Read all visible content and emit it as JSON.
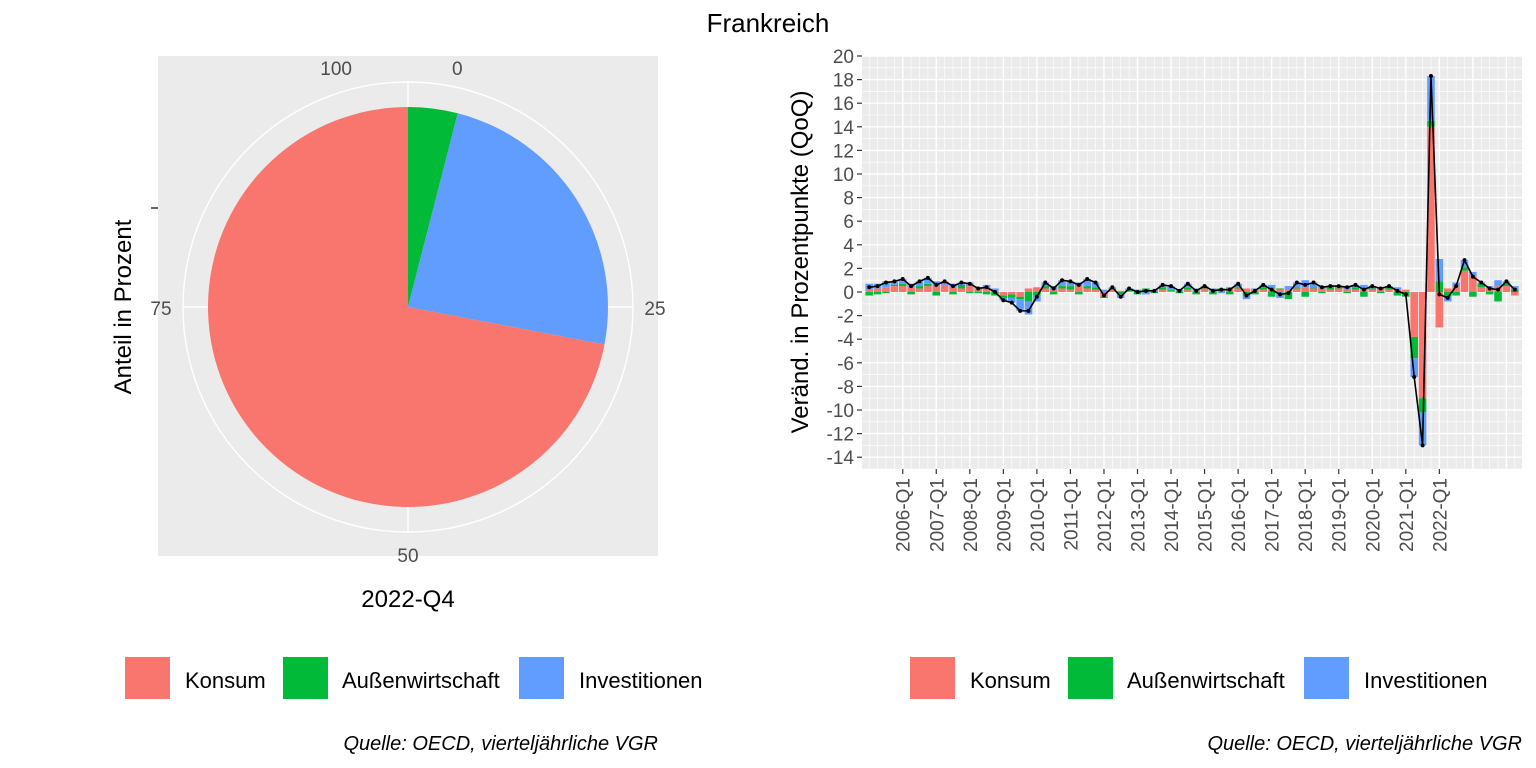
{
  "title": "Frankreich",
  "colors": {
    "Konsum": "#F8766D",
    "Außenwirtschaft": "#00BA38",
    "Investitionen": "#619CFF",
    "panel_bg": "#EBEBEB",
    "grid": "#FFFFFF",
    "line": "#000000",
    "text_dark": "#000000",
    "text_tick": "#4D4D4D"
  },
  "left_panel": {
    "xlabel": "2022-Q4",
    "ylabel": "Anteil in Prozent",
    "source": "Quelle: OECD, vierteljährliche VGR",
    "legend": [
      "Konsum",
      "Außenwirtschaft",
      "Investitionen"
    ]
  },
  "right_panel": {
    "ylabel": "Veränd. in Prozentpunkte (QoQ)",
    "source": "Quelle: OECD, vierteljährliche VGR",
    "legend": [
      "Konsum",
      "Außenwirtschaft",
      "Investitionen"
    ]
  },
  "chart_data": [
    {
      "type": "pie",
      "title": "",
      "xlabel": "2022-Q4",
      "ylabel": "Anteil in Prozent",
      "categories": [
        "Außenwirtschaft",
        "Investitionen",
        "Konsum"
      ],
      "values": [
        4.0,
        24.0,
        72.0
      ],
      "angular_ticks": [
        0,
        25,
        50,
        75,
        100
      ],
      "legend": [
        "Konsum",
        "Außenwirtschaft",
        "Investitionen"
      ],
      "legend_position": "bottom",
      "grid": true
    },
    {
      "type": "bar",
      "stacked": true,
      "title": "",
      "ylabel": "Veränd. in Prozentpunkte (QoQ)",
      "ylim": [
        -15,
        20
      ],
      "yticks": [
        -14,
        -12,
        -10,
        -8,
        -6,
        -4,
        -2,
        0,
        2,
        4,
        6,
        8,
        10,
        12,
        14,
        16,
        18,
        20
      ],
      "x_tick_labels": [
        "2006-Q1",
        "2007-Q1",
        "2008-Q1",
        "2009-Q1",
        "2010-Q1",
        "2011-Q1",
        "2012-Q1",
        "2013-Q1",
        "2014-Q1",
        "2015-Q1",
        "2016-Q1",
        "2017-Q1",
        "2018-Q1",
        "2019-Q1",
        "2020-Q1",
        "2021-Q1",
        "2022-Q1"
      ],
      "start_quarter": "2005-Q1",
      "legend": [
        "Konsum",
        "Außenwirtschaft",
        "Investitionen"
      ],
      "legend_position": "bottom",
      "grid": true,
      "series": [
        {
          "name": "Konsum",
          "values": [
            0.2,
            0.3,
            0.4,
            0.5,
            0.5,
            0.4,
            0.3,
            0.5,
            0.5,
            0.6,
            0.4,
            0.3,
            0.5,
            0.3,
            0.4,
            0.1,
            -0.3,
            -0.2,
            -0.4,
            0.3,
            0.4,
            0.3,
            0.2,
            0.3,
            0.2,
            0.5,
            0.3,
            0.2,
            -0.4,
            0.2,
            0.1,
            0.1,
            0.0,
            0.1,
            0.0,
            0.2,
            0.1,
            0.1,
            0.2,
            0.1,
            0.3,
            0.1,
            0.1,
            0.3,
            0.3,
            0.3,
            0.2,
            0.2,
            0.3,
            0.2,
            0.2,
            0.3,
            0.4,
            0.3,
            0.3,
            0.2,
            0.3,
            0.2,
            0.2,
            0.2,
            0.2,
            0.3,
            0.2,
            0.2,
            0.2,
            -3.8,
            -9.0,
            14.0,
            -3.0,
            0.3,
            0.5,
            1.8,
            1.4,
            0.4,
            0.3,
            0.5,
            0.5,
            -0.3
          ],
          "note": "Quarterly contributions starting 2005-Q1"
        },
        {
          "name": "Außenwirtschaft",
          "values": [
            -0.3,
            -0.2,
            -0.1,
            0.1,
            0.2,
            -0.2,
            0.2,
            0.2,
            -0.3,
            0.0,
            -0.2,
            0.3,
            -0.1,
            -0.1,
            -0.2,
            -0.3,
            -0.2,
            -0.3,
            -0.2,
            -0.8,
            -0.3,
            0.2,
            -0.2,
            0.2,
            0.3,
            -0.2,
            0.2,
            0.2,
            -0.1,
            0.1,
            -0.2,
            0.1,
            -0.2,
            0.2,
            -0.1,
            0.2,
            0.1,
            -0.1,
            0.2,
            -0.2,
            0.1,
            -0.2,
            0.2,
            -0.2,
            0.1,
            -0.3,
            -0.2,
            0.2,
            -0.4,
            0.1,
            -0.6,
            0.1,
            -0.4,
            0.1,
            -0.1,
            0.2,
            0.1,
            -0.1,
            0.2,
            -0.4,
            0.1,
            -0.1,
            0.2,
            -0.3,
            -0.4,
            -1.8,
            -1.2,
            0.5,
            0.9,
            -0.4,
            -0.3,
            0.3,
            -0.4,
            0.3,
            -0.2,
            -0.8,
            0.2,
            0.2
          ]
        },
        {
          "name": "Investitionen",
          "values": [
            0.5,
            0.4,
            0.5,
            0.3,
            0.4,
            0.3,
            0.4,
            0.5,
            0.4,
            0.3,
            0.3,
            0.2,
            0.3,
            0.1,
            0.2,
            0.2,
            -0.2,
            -0.4,
            -1.0,
            -1.1,
            -0.5,
            0.3,
            0.3,
            0.5,
            0.4,
            0.3,
            0.6,
            0.4,
            0.2,
            0.1,
            -0.3,
            0.1,
            0.2,
            -0.2,
            0.2,
            0.2,
            0.3,
            0.1,
            0.3,
            0.2,
            0.1,
            0.2,
            -0.1,
            0.1,
            0.3,
            -0.3,
            0.1,
            0.2,
            0.3,
            -0.5,
            0.3,
            0.4,
            0.6,
            0.4,
            0.2,
            0.1,
            0.1,
            0.3,
            0.2,
            0.4,
            0.2,
            0.1,
            0.1,
            0.2,
            0.0,
            -1.6,
            -2.8,
            3.8,
            1.9,
            -0.4,
            0.3,
            0.6,
            0.3,
            0.1,
            0.2,
            0.5,
            0.2,
            0.3
          ]
        }
      ],
      "total_line": {
        "name": "",
        "color": "#000000",
        "values": "sum of series per quarter"
      }
    }
  ]
}
